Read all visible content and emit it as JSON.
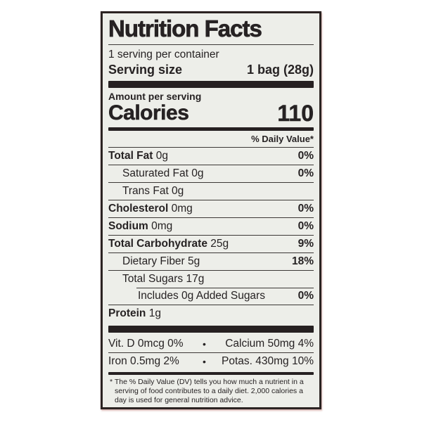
{
  "label": {
    "title": "Nutrition Facts",
    "servings_per_container": "1 serving per container",
    "serving_size_label": "Serving size",
    "serving_size_value": "1 bag (28g)",
    "amount_per_serving": "Amount per serving",
    "calories_label": "Calories",
    "calories_value": "110",
    "daily_value_header": "% Daily Value*",
    "rows": [
      {
        "name": "Total Fat",
        "amount": "0g",
        "dv": "0%",
        "bold": true,
        "indent": 0
      },
      {
        "name": "Saturated Fat",
        "amount": "0g",
        "dv": "0%",
        "bold": false,
        "indent": 1
      },
      {
        "name": "Trans Fat",
        "amount": "0g",
        "dv": "",
        "bold": false,
        "indent": 1
      },
      {
        "name": "Cholesterol",
        "amount": "0mg",
        "dv": "0%",
        "bold": true,
        "indent": 0
      },
      {
        "name": "Sodium",
        "amount": "0mg",
        "dv": "0%",
        "bold": true,
        "indent": 0
      },
      {
        "name": "Total Carbohydrate",
        "amount": "25g",
        "dv": "9%",
        "bold": true,
        "indent": 0
      },
      {
        "name": "Dietary Fiber",
        "amount": "5g",
        "dv": "18%",
        "bold": false,
        "indent": 1
      },
      {
        "name": "Total Sugars",
        "amount": "17g",
        "dv": "",
        "bold": false,
        "indent": 1
      },
      {
        "name": "Includes 0g Added Sugars",
        "amount": "",
        "dv": "0%",
        "bold": false,
        "indent": 2,
        "partial_rule": true
      },
      {
        "name": "Protein",
        "amount": "1g",
        "dv": "",
        "bold": true,
        "indent": 0
      }
    ],
    "bullet": "•",
    "micronutrients": [
      {
        "left": "Vit. D 0mcg 0%",
        "right": "Calcium 50mg 4%"
      },
      {
        "left": "Iron 0.5mg 2%",
        "right": "Potas. 430mg 10%"
      }
    ],
    "footnote_marker": "*",
    "footnote": "The % Daily Value (DV) tells you how much a nutrient in a serving of food contributes to a daily diet. 2,000 calories a day is used for general nutrition advice."
  },
  "colors": {
    "label_background": "#edeee9",
    "ink": "#262223",
    "rule": "#3c3836",
    "bar": "#262021",
    "border": "#2b2322"
  }
}
